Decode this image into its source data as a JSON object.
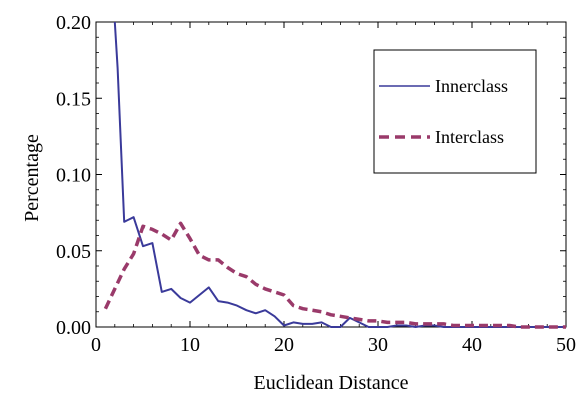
{
  "chart_data": {
    "type": "line",
    "title": "",
    "xlabel": "Euclidean Distance",
    "ylabel": "Percentage",
    "xlim": [
      0,
      50
    ],
    "ylim": [
      0,
      0.2
    ],
    "xticks": [
      0,
      10,
      20,
      30,
      40,
      50
    ],
    "xtick_labels": [
      "0",
      "10",
      "20",
      "30",
      "40",
      "50"
    ],
    "yticks": [
      0,
      0.05,
      0.1,
      0.15,
      0.2
    ],
    "ytick_labels": [
      "0.00",
      "0.05",
      "0.10",
      "0.15",
      "0.20"
    ],
    "grid": false,
    "legend_position": "top-right",
    "series": [
      {
        "name": "Innerclass",
        "color": "#3a3a9a",
        "style": "solid",
        "x": [
          2,
          2.3,
          3,
          4,
          5,
          6,
          7,
          8,
          9,
          10,
          11,
          12,
          13,
          14,
          15,
          16,
          17,
          18,
          19,
          20,
          21,
          22,
          23,
          24,
          25,
          26,
          27,
          28,
          29,
          30,
          31,
          32,
          33,
          34,
          35,
          36,
          37,
          38,
          39,
          40,
          41,
          42,
          43,
          44,
          45,
          46,
          47,
          48,
          49,
          50
        ],
        "y": [
          0.2,
          0.17,
          0.069,
          0.072,
          0.053,
          0.055,
          0.023,
          0.025,
          0.019,
          0.016,
          0.021,
          0.026,
          0.017,
          0.016,
          0.014,
          0.011,
          0.009,
          0.011,
          0.007,
          0.001,
          0.003,
          0.002,
          0.002,
          0.003,
          0.0,
          0.0,
          0.006,
          0.003,
          0.0,
          0.0,
          0.0,
          0.001,
          0.001,
          0.0,
          0.001,
          0.001,
          0.0,
          0.0,
          0.0,
          0.0,
          0.0,
          0.0,
          0.0,
          0.0,
          0.0,
          0.0,
          0.0,
          0.0,
          0.0,
          0.0
        ]
      },
      {
        "name": "Interclass",
        "color": "#9a3a6a",
        "style": "dashed",
        "x": [
          1,
          2,
          3,
          4,
          5,
          6,
          7,
          8,
          9,
          10,
          11,
          12,
          13,
          14,
          15,
          16,
          17,
          18,
          19,
          20,
          21,
          22,
          23,
          24,
          25,
          26,
          27,
          28,
          29,
          30,
          31,
          32,
          33,
          34,
          35,
          36,
          37,
          38,
          39,
          40,
          41,
          42,
          43,
          44,
          45,
          46,
          47,
          48,
          49,
          50
        ],
        "y": [
          0.012,
          0.025,
          0.038,
          0.048,
          0.066,
          0.064,
          0.061,
          0.057,
          0.068,
          0.058,
          0.047,
          0.044,
          0.044,
          0.039,
          0.035,
          0.033,
          0.028,
          0.025,
          0.023,
          0.021,
          0.014,
          0.012,
          0.011,
          0.01,
          0.008,
          0.007,
          0.006,
          0.005,
          0.004,
          0.004,
          0.003,
          0.003,
          0.003,
          0.002,
          0.002,
          0.002,
          0.002,
          0.001,
          0.001,
          0.001,
          0.001,
          0.001,
          0.001,
          0.001,
          0.0,
          0.0,
          0.0,
          0.0,
          0.0,
          0.0
        ]
      }
    ]
  }
}
